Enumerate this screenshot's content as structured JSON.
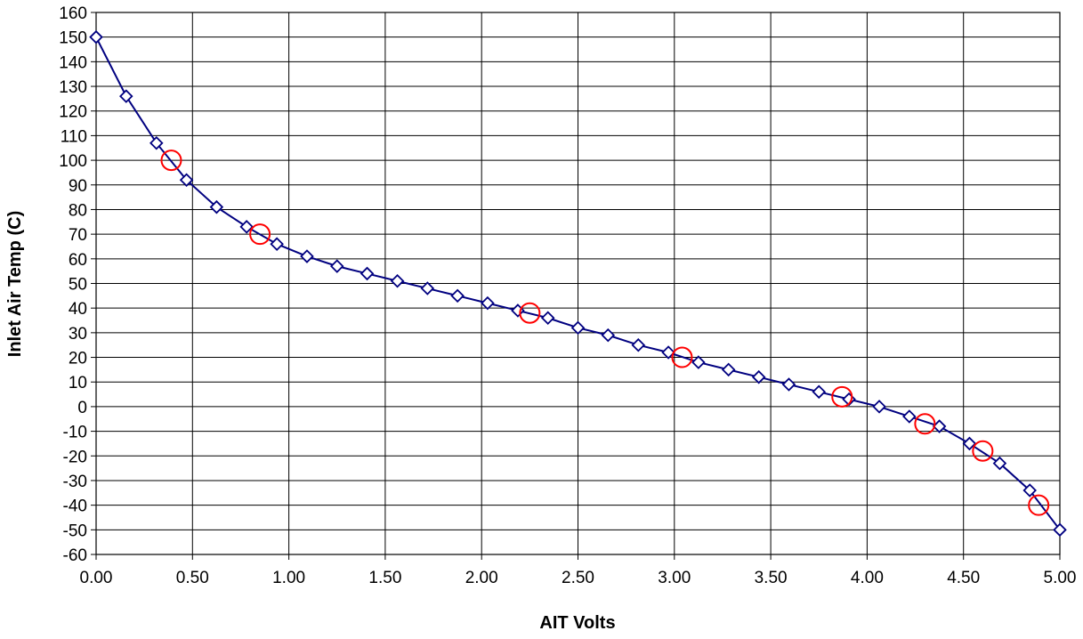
{
  "chart_data": {
    "type": "line",
    "xlabel": "AIT Volts",
    "ylabel": "Inlet Air Temp (C)",
    "xlim": [
      0,
      5
    ],
    "ylim": [
      -60,
      160
    ],
    "x_ticks": [
      "0.00",
      "0.50",
      "1.00",
      "1.50",
      "2.00",
      "2.50",
      "3.00",
      "3.50",
      "4.00",
      "4.50",
      "5.00"
    ],
    "y_ticks": [
      "160",
      "150",
      "140",
      "130",
      "120",
      "110",
      "100",
      "90",
      "80",
      "70",
      "60",
      "50",
      "40",
      "30",
      "20",
      "10",
      "0",
      "-10",
      "-20",
      "-30",
      "-40",
      "-50",
      "-60"
    ],
    "grid": true,
    "legend": false,
    "colors": {
      "line": "#000080",
      "circles": "#ff0000",
      "grid": "#000000"
    },
    "series": [
      {
        "marker": "diamond",
        "x": [
          0.0,
          0.156,
          0.313,
          0.469,
          0.625,
          0.781,
          0.938,
          1.094,
          1.25,
          1.406,
          1.563,
          1.719,
          1.875,
          2.031,
          2.188,
          2.344,
          2.5,
          2.656,
          2.813,
          2.969,
          3.125,
          3.281,
          3.438,
          3.594,
          3.75,
          3.906,
          4.063,
          4.219,
          4.375,
          4.531,
          4.688,
          4.844,
          5.0
        ],
        "y": [
          150,
          126,
          107,
          92,
          81,
          73,
          66,
          61,
          57,
          54,
          51,
          48,
          45,
          42,
          39,
          36,
          32,
          29,
          25,
          22,
          18,
          15,
          12,
          9,
          6,
          3,
          0,
          -4,
          -8,
          -15,
          -23,
          -34,
          -50
        ]
      },
      {
        "marker": "circle",
        "x": [
          0.39,
          0.85,
          2.25,
          3.04,
          3.87,
          4.3,
          4.6,
          4.89
        ],
        "y": [
          100,
          70,
          38,
          20,
          4,
          -7,
          -18,
          -40
        ]
      }
    ]
  }
}
